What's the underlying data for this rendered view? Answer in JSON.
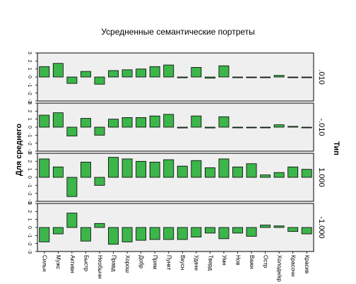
{
  "chart_data": {
    "type": "bar",
    "title": "Усредненные семантические портреты",
    "ylabel": "Для среднего",
    "facet_label": "Тип",
    "ylim": [
      -3,
      3
    ],
    "y_ticks": [
      "3",
      "2",
      "1",
      "0",
      "-1",
      "-2",
      "-3"
    ],
    "bar_color": "#3cb54a",
    "panel_color": "#efefef",
    "categories": [
      "Сильн",
      "Мужс",
      "Активн",
      "Быстр",
      "Необычн",
      "Правд",
      "Хорош",
      "Добр",
      "Прям",
      "Пункт",
      "Вкусн",
      "Удачн",
      "Тверд",
      "Умн",
      "Нов",
      "Важн",
      "Остр",
      "Холодн/кр",
      "Красочн",
      "Красив"
    ],
    "panels": [
      {
        "name": ".010",
        "values": [
          1.3,
          1.7,
          -0.8,
          0.7,
          -0.9,
          0.8,
          0.9,
          1.0,
          1.3,
          1.5,
          -0.1,
          1.2,
          -0.15,
          1.4,
          0.0,
          0.0,
          0.0,
          0.2,
          0.0,
          0.0
        ]
      },
      {
        "name": "-.010",
        "values": [
          1.5,
          1.8,
          -1.1,
          1.1,
          -1.0,
          1.0,
          1.2,
          1.2,
          1.4,
          1.6,
          -0.1,
          1.4,
          -0.1,
          1.3,
          0.0,
          0.0,
          0.0,
          0.3,
          0.1,
          0.0
        ]
      },
      {
        "name": "1.000",
        "values": [
          2.3,
          1.3,
          -2.4,
          1.9,
          -1.0,
          2.5,
          2.3,
          2.0,
          1.9,
          2.2,
          1.4,
          2.1,
          1.2,
          2.3,
          1.3,
          1.7,
          0.3,
          0.6,
          1.3,
          1.0
        ]
      },
      {
        "name": "-1.000",
        "values": [
          -1.8,
          -0.8,
          1.8,
          -1.7,
          0.5,
          -2.1,
          -1.8,
          -1.6,
          -1.5,
          -1.5,
          -1.5,
          -1.2,
          -0.7,
          -1.4,
          -0.7,
          -1.1,
          0.3,
          0.2,
          -0.5,
          -0.8
        ]
      }
    ]
  }
}
